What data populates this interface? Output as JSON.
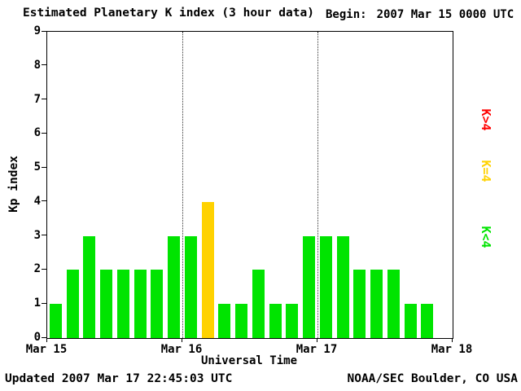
{
  "header": {
    "title": "Estimated Planetary K index (3 hour data)",
    "begin_label": "Begin:",
    "begin_value": "2007 Mar 15 0000 UTC"
  },
  "chart_data": {
    "type": "bar",
    "title": "Estimated Planetary K index (3 hour data)",
    "xlabel": "Universal Time",
    "ylabel": "Kp index",
    "ylim": [
      0,
      9
    ],
    "y_ticks": [
      0,
      1,
      2,
      3,
      4,
      5,
      6,
      7,
      8,
      9
    ],
    "x_tick_labels": [
      "Mar 15",
      "Mar 16",
      "Mar 17",
      "Mar 18"
    ],
    "days": 3,
    "bars_per_day": 8,
    "hours_per_bar": 3,
    "values": [
      1,
      2,
      3,
      2,
      2,
      2,
      2,
      3,
      3,
      4,
      1,
      1,
      2,
      1,
      1,
      3,
      3,
      3,
      2,
      2,
      2,
      1,
      1
    ],
    "colors": {
      "k_lt_4": "#00e400",
      "k_eq_4": "#ffd200",
      "k_gt_4": "#ff0000"
    },
    "grid": "dotted vertical lines at day boundaries",
    "legend_position": "right, rotated"
  },
  "legend": {
    "items": [
      {
        "label": "K>4",
        "color": "#ff0000"
      },
      {
        "label": "K=4",
        "color": "#ffd200"
      },
      {
        "label": "K<4",
        "color": "#00e400"
      }
    ]
  },
  "footer": {
    "updated": "Updated 2007 Mar 17 22:45:03 UTC",
    "source": "NOAA/SEC Boulder, CO USA"
  }
}
